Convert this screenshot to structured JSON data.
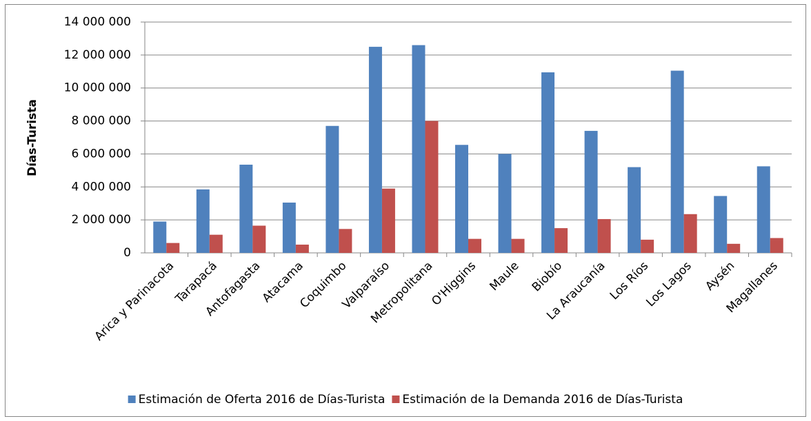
{
  "chart_data": {
    "type": "bar",
    "y_label": "Días-Turista",
    "categories": [
      "Arica y Parinacota",
      "Tarapacá",
      "Antofagasta",
      "Atacama",
      "Coquimbo",
      "Valparaíso",
      "Metropolitana",
      "O'Higgins",
      "Maule",
      "Biobío",
      "La Araucanía",
      "Los Ríos",
      "Los Lagos",
      "Aysén",
      "Magallanes"
    ],
    "series": [
      {
        "name": "Estimación de Oferta 2016 de Días-Turista",
        "color": "#4f81bd",
        "values": [
          1900000,
          3850000,
          5350000,
          3050000,
          7700000,
          12500000,
          12600000,
          6550000,
          6000000,
          10950000,
          7400000,
          5200000,
          11050000,
          3450000,
          5250000
        ]
      },
      {
        "name": "Estimación de la Demanda 2016 de Días-Turista",
        "color": "#c0504d",
        "values": [
          600000,
          1100000,
          1650000,
          500000,
          1450000,
          3900000,
          8000000,
          850000,
          850000,
          1500000,
          2050000,
          800000,
          2350000,
          550000,
          900000
        ]
      }
    ],
    "ylim": [
      0,
      14000000
    ],
    "yticks": [
      0,
      {
        "value": 2000000,
        "label": "2 000 000"
      },
      {
        "value": 4000000,
        "label": "4 000 000"
      },
      {
        "value": 6000000,
        "label": "6 000 000"
      },
      {
        "value": 8000000,
        "label": "8 000 000"
      },
      {
        "value": 10000000,
        "label": "10 000 000"
      },
      {
        "value": 12000000,
        "label": "12 000 000"
      },
      {
        "value": 14000000,
        "label": "14 000 000"
      }
    ],
    "grid": true,
    "legend": "bottom"
  }
}
